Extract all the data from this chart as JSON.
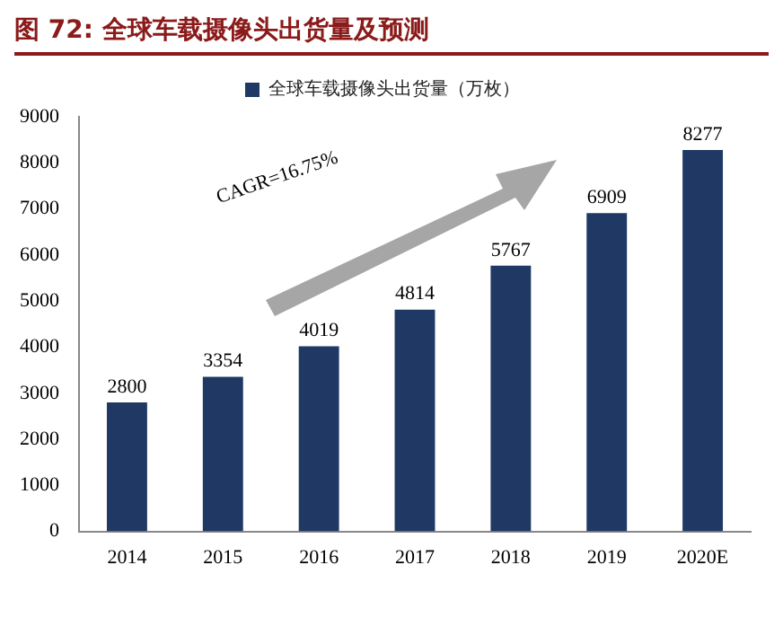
{
  "chart_data": {
    "type": "bar",
    "title": "图 72:  全球车载摄像头出货量及预测",
    "categories": [
      "2014",
      "2015",
      "2016",
      "2017",
      "2018",
      "2019",
      "2020E"
    ],
    "series": [
      {
        "name": "全球车载摄像头出货量（万枚）",
        "color": "#1f3864",
        "values": [
          2800,
          3354,
          4019,
          4814,
          5767,
          6909,
          8277
        ]
      }
    ],
    "ylim": [
      0,
      9000
    ],
    "yticks": [
      0,
      1000,
      2000,
      3000,
      4000,
      5000,
      6000,
      7000,
      8000,
      9000
    ],
    "grid": false,
    "legend": "top",
    "data_labels": true,
    "annotations": [
      "CAGR=16.75%"
    ]
  }
}
